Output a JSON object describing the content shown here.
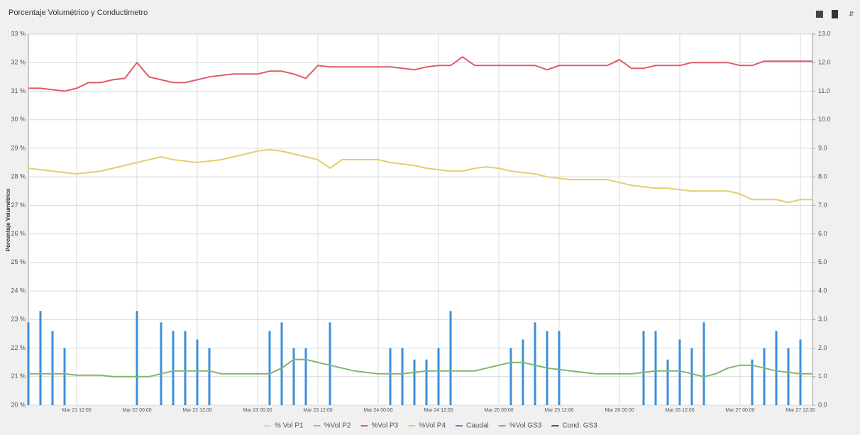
{
  "chart_data": {
    "type": "line",
    "title": "Porcentaje Volumétrico y Conductimetro",
    "ylabel": "Porcentaje Volumétrico",
    "categories": [
      null,
      null,
      null,
      null,
      "Mar 21 12:00",
      null,
      null,
      null,
      null,
      "Mar 22 00:00",
      null,
      null,
      null,
      null,
      "Mar 22 12:00",
      null,
      null,
      null,
      null,
      "Mar 23 00:00",
      null,
      null,
      null,
      null,
      "Mar 23 12:00",
      null,
      null,
      null,
      null,
      "Mar 24 00:00",
      null,
      null,
      null,
      null,
      "Mar 24 12:00",
      null,
      null,
      null,
      null,
      "Mar 25 00:00",
      null,
      null,
      null,
      null,
      "Mar 25 12:00",
      null,
      null,
      null,
      null,
      "Mar 26 00:00",
      null,
      null,
      null,
      null,
      "Mar 26 12:00",
      null,
      null,
      null,
      null,
      "Mar 27 00:00",
      null,
      null,
      null,
      null,
      "Mar 27 12:00",
      null
    ],
    "ylim": [
      20,
      33
    ],
    "yticks": [
      {
        "value": 20,
        "label": "20 %"
      },
      {
        "value": 21,
        "label": "21 %"
      },
      {
        "value": 22,
        "label": "22 %"
      },
      {
        "value": 23,
        "label": "23 %"
      },
      {
        "value": 24,
        "label": "24 %"
      },
      {
        "value": 25,
        "label": "25 %"
      },
      {
        "value": 26,
        "label": "26 %"
      },
      {
        "value": 27,
        "label": "27 %"
      },
      {
        "value": 28,
        "label": "28 %"
      },
      {
        "value": 29,
        "label": "29 %"
      },
      {
        "value": 30,
        "label": "30 %"
      },
      {
        "value": 31,
        "label": "31 %"
      },
      {
        "value": 32,
        "label": "32 %"
      },
      {
        "value": 33,
        "label": "33 %"
      }
    ],
    "y2lim": [
      0,
      13
    ],
    "y2ticks": [
      {
        "value": 0,
        "label": "0.0"
      },
      {
        "value": 1,
        "label": "1.0"
      },
      {
        "value": 2,
        "label": "2.0"
      },
      {
        "value": 3,
        "label": "3.0"
      },
      {
        "value": 4,
        "label": "4.0"
      },
      {
        "value": 5,
        "label": "5.0"
      },
      {
        "value": 6,
        "label": "6.0"
      },
      {
        "value": 7,
        "label": "7.0"
      },
      {
        "value": 8,
        "label": "8.0"
      },
      {
        "value": 9,
        "label": "9.0"
      },
      {
        "value": 10,
        "label": "10.0"
      },
      {
        "value": 11,
        "label": "11.0"
      },
      {
        "value": 12,
        "label": "12.0"
      },
      {
        "value": 13,
        "label": "13.0"
      }
    ],
    "grid": true,
    "series": [
      {
        "name": "% Vol P1",
        "color": "#e8d98a",
        "visible": false
      },
      {
        "name": "%Vol P2",
        "color": "#9ab8c8",
        "visible": false
      },
      {
        "name": "%Vol P3",
        "color": "#e05a6a",
        "visible": true,
        "values": [
          31.1,
          31.1,
          31.05,
          31.0,
          31.1,
          31.3,
          31.3,
          31.4,
          31.45,
          32.0,
          31.5,
          31.4,
          31.3,
          31.3,
          31.4,
          31.5,
          31.55,
          31.6,
          31.6,
          31.6,
          31.7,
          31.7,
          31.6,
          31.45,
          31.9,
          31.85,
          31.85,
          31.85,
          31.85,
          31.85,
          31.85,
          31.8,
          31.75,
          31.85,
          31.9,
          31.9,
          32.2,
          31.9,
          31.9,
          31.9,
          31.9,
          31.9,
          31.9,
          31.75,
          31.9,
          31.9,
          31.9,
          31.9,
          31.9,
          32.1,
          31.8,
          31.8,
          31.9,
          31.9,
          31.9,
          32.0,
          32.0,
          32.0,
          32.0,
          31.9,
          31.9,
          32.05,
          32.05,
          32.05,
          32.05,
          32.05
        ]
      },
      {
        "name": "%Vol P4",
        "color": "#e3cf6a",
        "visible": true,
        "values": [
          28.3,
          28.25,
          28.2,
          28.15,
          28.1,
          28.15,
          28.2,
          28.3,
          28.4,
          28.5,
          28.6,
          28.7,
          28.6,
          28.55,
          28.5,
          28.55,
          28.6,
          28.7,
          28.8,
          28.9,
          28.95,
          28.9,
          28.8,
          28.7,
          28.6,
          28.3,
          28.6,
          28.6,
          28.6,
          28.6,
          28.5,
          28.45,
          28.4,
          28.3,
          28.25,
          28.2,
          28.2,
          28.3,
          28.35,
          28.3,
          28.2,
          28.15,
          28.1,
          28.0,
          27.95,
          27.9,
          27.9,
          27.9,
          27.9,
          27.8,
          27.7,
          27.65,
          27.6,
          27.6,
          27.55,
          27.5,
          27.5,
          27.5,
          27.5,
          27.4,
          27.2,
          27.2,
          27.2,
          27.1,
          27.2,
          27.2
        ]
      },
      {
        "name": "Caudal",
        "color": "#3b8fdc",
        "visible": true,
        "axis": "y2",
        "kind": "bar",
        "values": [
          2.9,
          3.3,
          2.6,
          2.0,
          0,
          0,
          0,
          0,
          0,
          3.3,
          0,
          2.9,
          2.6,
          2.6,
          2.3,
          2.0,
          0,
          0,
          0,
          0,
          2.6,
          2.9,
          2.0,
          2.0,
          0,
          2.9,
          0,
          0,
          0,
          0,
          2.0,
          2.0,
          1.6,
          1.6,
          2.0,
          3.3,
          0,
          0,
          0,
          0,
          2.0,
          2.3,
          2.9,
          2.6,
          2.6,
          0,
          0,
          0,
          0,
          0,
          0,
          2.6,
          2.6,
          1.6,
          2.3,
          2.0,
          2.9,
          0,
          0,
          0,
          1.6,
          2.0,
          2.6,
          2.0,
          2.3,
          0
        ]
      },
      {
        "name": "%Vol GS3",
        "color": "#7db86a",
        "visible": true,
        "values": [
          21.1,
          21.1,
          21.1,
          21.1,
          21.05,
          21.05,
          21.05,
          21.0,
          21.0,
          21.0,
          21.0,
          21.1,
          21.2,
          21.2,
          21.2,
          21.2,
          21.1,
          21.1,
          21.1,
          21.1,
          21.1,
          21.3,
          21.6,
          21.6,
          21.5,
          21.4,
          21.3,
          21.2,
          21.15,
          21.1,
          21.1,
          21.1,
          21.15,
          21.2,
          21.2,
          21.2,
          21.2,
          21.2,
          21.3,
          21.4,
          21.5,
          21.5,
          21.4,
          21.3,
          21.25,
          21.2,
          21.15,
          21.1,
          21.1,
          21.1,
          21.1,
          21.15,
          21.2,
          21.2,
          21.2,
          21.1,
          21.0,
          21.1,
          21.3,
          21.4,
          21.4,
          21.3,
          21.2,
          21.15,
          21.1,
          21.1
        ]
      },
      {
        "name": "Cond. GS3",
        "color": "#3a5a7a",
        "visible": false
      }
    ]
  }
}
